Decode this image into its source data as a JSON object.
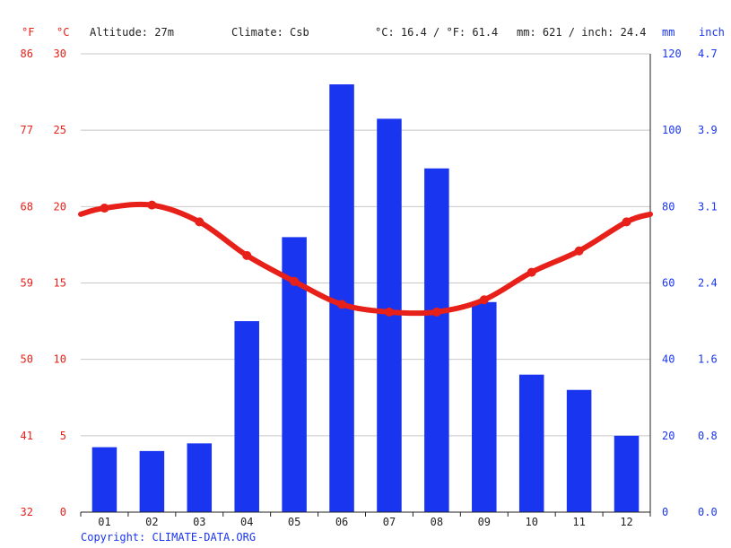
{
  "header": {
    "unit_f": "°F",
    "unit_c": "°C",
    "altitude": "Altitude: 27m",
    "climate": "Climate: Csb",
    "temp_avg": "°C: 16.4 / °F: 61.4",
    "precip_total": "mm: 621 / inch: 24.4",
    "unit_mm": "mm",
    "unit_inch": "inch"
  },
  "footer": {
    "copyright": "Copyright: CLIMATE-DATA.ORG"
  },
  "colors": {
    "temperature": "#e8201a",
    "precipitation": "#1a35f0",
    "grid": "#c8c8c8"
  },
  "chart_data": {
    "type": "bar+line",
    "categories": [
      "01",
      "02",
      "03",
      "04",
      "05",
      "06",
      "07",
      "08",
      "09",
      "10",
      "11",
      "12"
    ],
    "series": [
      {
        "type": "bar",
        "axis": "right",
        "unit": "mm",
        "values": [
          17,
          16,
          18,
          50,
          72,
          112,
          103,
          90,
          55,
          36,
          32,
          20
        ]
      },
      {
        "type": "line",
        "axis": "left",
        "unit": "°C",
        "values": [
          19.9,
          20.1,
          19.0,
          16.8,
          15.1,
          13.6,
          13.1,
          13.1,
          13.9,
          15.7,
          17.1,
          19.0
        ]
      }
    ],
    "axes": {
      "celsius": {
        "ticks": [
          0,
          5,
          10,
          15,
          20,
          25,
          30
        ],
        "range": [
          0,
          30
        ]
      },
      "fahrenheit": {
        "ticks": [
          32,
          41,
          50,
          59,
          68,
          77,
          86
        ]
      },
      "mm": {
        "ticks": [
          0,
          20,
          40,
          60,
          80,
          100,
          120
        ],
        "range": [
          0,
          120
        ]
      },
      "inch": {
        "ticks": [
          "0.0",
          "0.8",
          "1.6",
          "2.4",
          "3.1",
          "3.9",
          "4.7"
        ]
      }
    },
    "line_edge_start": 19.5,
    "line_edge_end": 19.5,
    "grid": true
  }
}
